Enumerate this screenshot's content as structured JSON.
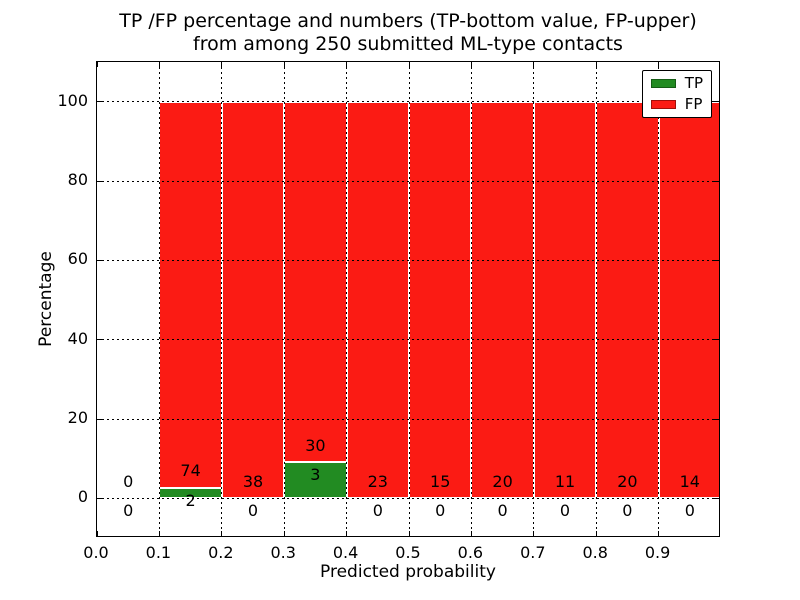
{
  "figure": {
    "title_line1": "TP /FP percentage and numbers (TP-bottom value, FP-upper)",
    "title_line2": "from among 250 submitted ML-type contacts",
    "xlabel": "Predicted probability",
    "ylabel": "Percentage"
  },
  "legend": {
    "position": "upper right",
    "items": [
      {
        "label": "TP",
        "color": "#228b22"
      },
      {
        "label": "FP",
        "color": "#fb1b14"
      }
    ]
  },
  "chart_data": {
    "type": "bar",
    "stacked": true,
    "title": "TP /FP percentage and numbers (TP-bottom value, FP-upper)\nfrom among 250 submitted ML-type contacts",
    "xlabel": "Predicted probability",
    "ylabel": "Percentage",
    "xlim": [
      0.0,
      1.0
    ],
    "ylim": [
      -10,
      110
    ],
    "grid": true,
    "legend_position": "upper right",
    "bin_edges": [
      0.0,
      0.1,
      0.2,
      0.3,
      0.4,
      0.5,
      0.6,
      0.7,
      0.8,
      0.9,
      1.0
    ],
    "x_ticks": [
      "0.0",
      "0.1",
      "0.2",
      "0.3",
      "0.4",
      "0.5",
      "0.6",
      "0.7",
      "0.8",
      "0.9"
    ],
    "y_ticks": [
      "0",
      "20",
      "40",
      "60",
      "80",
      "100"
    ],
    "series": [
      {
        "name": "TP",
        "color": "#228b22",
        "edge_color": "#ffffff",
        "counts": [
          0,
          2,
          0,
          3,
          0,
          0,
          0,
          0,
          0,
          0
        ],
        "percent": [
          0,
          2.63,
          0,
          9.09,
          0,
          0,
          0,
          0,
          0,
          0
        ]
      },
      {
        "name": "FP",
        "color": "#fb1b14",
        "edge_color": "#ffffff",
        "counts": [
          0,
          74,
          38,
          30,
          23,
          15,
          20,
          11,
          20,
          14
        ],
        "percent": [
          0,
          97.37,
          100,
          90.91,
          100,
          100,
          100,
          100,
          100,
          100
        ]
      }
    ]
  }
}
